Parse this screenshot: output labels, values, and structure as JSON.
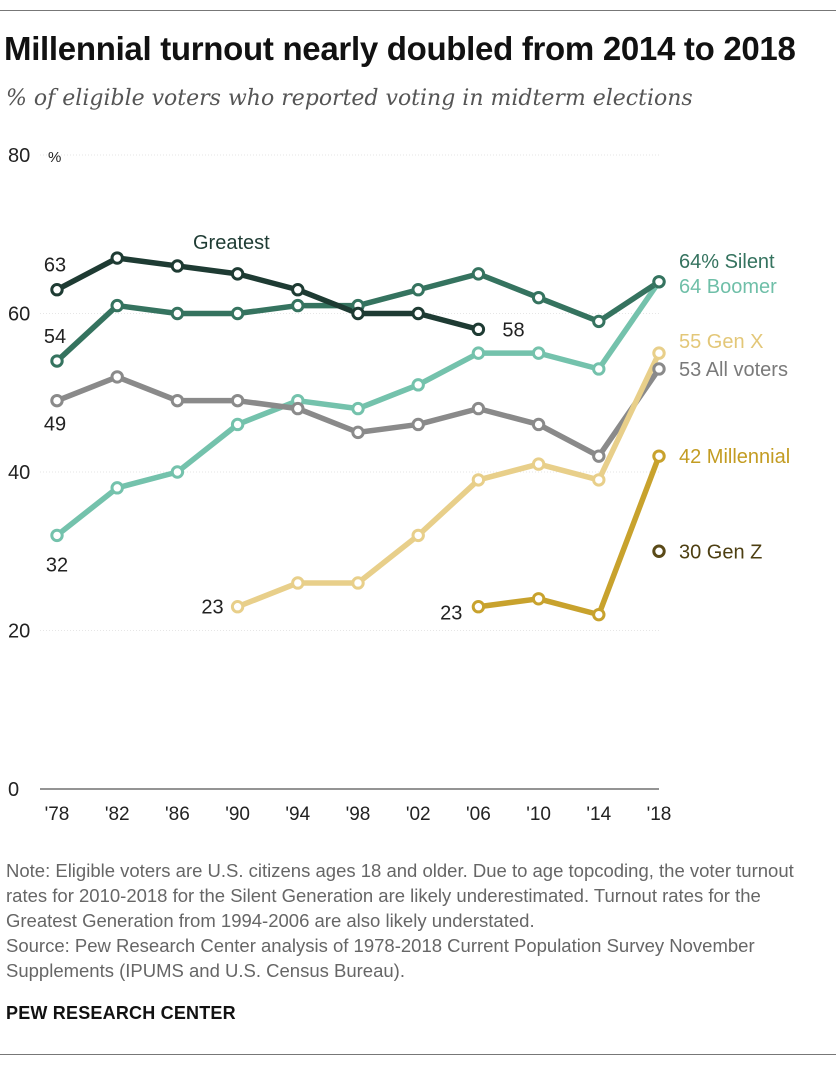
{
  "header": {
    "title": "Millennial turnout nearly doubled from 2014 to 2018",
    "subtitle": "% of eligible voters who reported voting in midterm elections"
  },
  "footer": {
    "note": "Note: Eligible voters are U.S. citizens ages 18 and older. Due to age topcoding, the voter turnout rates for 2010-2018 for the Silent Generation are likely underestimated. Turnout rates for the Greatest Generation from 1994-2006 are also likely understated.",
    "source": "Source: Pew Research Center analysis of 1978-2018 Current Population Survey November Supplements (IPUMS and U.S. Census Bureau).",
    "brand": "PEW RESEARCH CENTER"
  },
  "chart_data": {
    "type": "line",
    "title": "Millennial turnout nearly doubled from 2014 to 2018",
    "subtitle": "% of eligible voters who reported voting in midterm elections",
    "xlabel": "",
    "ylabel": "",
    "ylim": [
      0,
      80
    ],
    "yticks": [
      0,
      20,
      40,
      60,
      80
    ],
    "ytick_labels": [
      "0",
      "20",
      "40",
      "60",
      "80"
    ],
    "y_unit_label": "%",
    "grid": "horizontal",
    "x": [
      1978,
      1982,
      1986,
      1990,
      1994,
      1998,
      2002,
      2006,
      2010,
      2014,
      2018
    ],
    "x_tick_labels": [
      "'78",
      "'82",
      "'86",
      "'90",
      "'94",
      "'98",
      "'02",
      "'06",
      "'10",
      "'14",
      "'18"
    ],
    "series": [
      {
        "name": "Greatest",
        "color": "#1e3b33",
        "values": [
          63,
          67,
          66,
          65,
          63,
          60,
          60,
          58,
          null,
          null,
          null
        ],
        "labels": [
          "63",
          "",
          "",
          "",
          "",
          "",
          "",
          "58",
          "",
          "",
          ""
        ]
      },
      {
        "name": "Silent",
        "color": "#35735f",
        "values": [
          54,
          61,
          60,
          60,
          61,
          61,
          63,
          65,
          62,
          59,
          64
        ],
        "labels": [
          "54",
          "",
          "",
          "",
          "",
          "",
          "",
          "",
          "",
          "",
          "64% Silent"
        ]
      },
      {
        "name": "All voters",
        "color": "#8a8a8a",
        "values": [
          49,
          52,
          49,
          49,
          48,
          45,
          46,
          48,
          46,
          42,
          53
        ],
        "labels": [
          "49",
          "",
          "",
          "",
          "",
          "",
          "",
          "",
          "",
          "",
          "53 All voters"
        ]
      },
      {
        "name": "Boomer",
        "color": "#74c2ac",
        "values": [
          32,
          38,
          40,
          46,
          49,
          48,
          51,
          55,
          55,
          53,
          64
        ],
        "labels": [
          "32",
          "",
          "",
          "",
          "",
          "",
          "",
          "",
          "",
          "",
          "64 Boomer"
        ]
      },
      {
        "name": "Gen X",
        "color": "#e8cf8a",
        "values": [
          null,
          null,
          null,
          23,
          26,
          26,
          32,
          39,
          41,
          39,
          55
        ],
        "labels": [
          "",
          "",
          "",
          "23",
          "",
          "",
          "",
          "",
          "",
          "",
          "55 Gen X"
        ]
      },
      {
        "name": "Millennial",
        "color": "#c8a22d",
        "values": [
          null,
          null,
          null,
          null,
          null,
          null,
          null,
          23,
          24,
          22,
          42
        ],
        "labels": [
          "",
          "",
          "",
          "",
          "",
          "",
          "",
          "23",
          "",
          "",
          "42 Millennial"
        ]
      },
      {
        "name": "Gen Z",
        "color": "#5a4a18",
        "values": [
          null,
          null,
          null,
          null,
          null,
          null,
          null,
          null,
          null,
          null,
          30
        ],
        "labels": [
          "",
          "",
          "",
          "",
          "",
          "",
          "",
          "",
          "",
          "",
          "30 Gen Z"
        ]
      }
    ],
    "annotations": [
      {
        "text": "Greatest",
        "color": "#1e3b33"
      }
    ],
    "label_colors": {
      "Silent": "#35735f",
      "Boomer": "#6fbfa8",
      "Gen X": "#e3c778",
      "All voters": "#7a7a7a",
      "Millennial": "#c39c22",
      "Gen Z": "#4d3f12",
      "number": "#222222"
    }
  }
}
